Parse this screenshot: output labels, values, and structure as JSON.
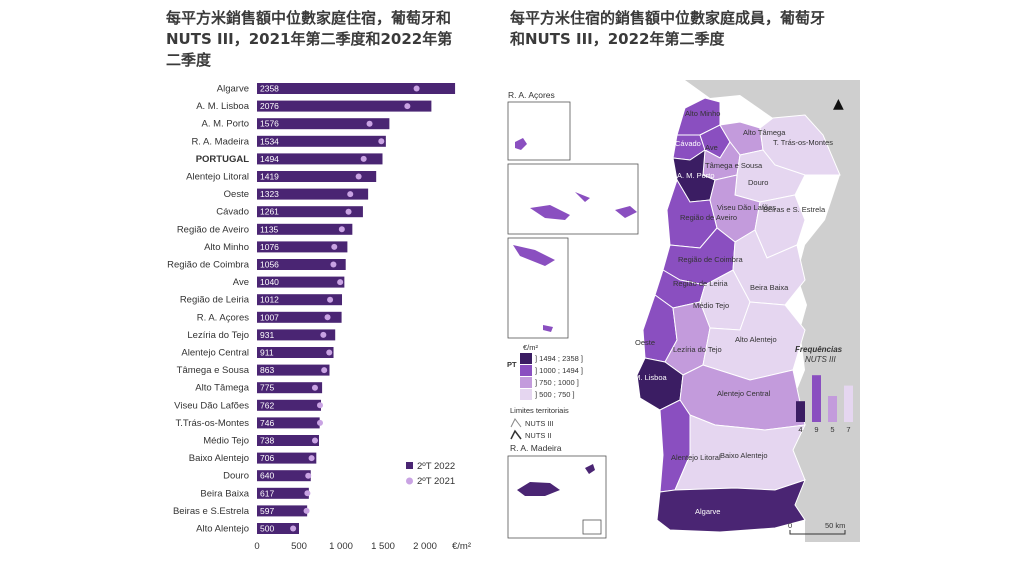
{
  "left_title": "每平方米銷售額中位數家庭住宿，葡萄牙和NUTS III，2021年第二季度和2022年第二季度",
  "right_title": "每平方米住宿的銷售額中位數家庭成員，葡萄牙和NUTS III，2022年第二季度",
  "colors": {
    "bar": "#4a2573",
    "dot": "#c9a3e3",
    "dark": "#3b1d63",
    "mid": "#8a4fc0",
    "light": "#c39bdc",
    "pale": "#e5d6f0",
    "sea": "#ffffff",
    "land_es": "#cfcfcf"
  },
  "chart_data": [
    {
      "type": "bar",
      "orientation": "horizontal",
      "categories": [
        "Algarve",
        "A. M. Lisboa",
        "A. M. Porto",
        "R. A. Madeira",
        "PORTUGAL",
        "Alentejo Litoral",
        "Oeste",
        "Cávado",
        "Região de Aveiro",
        "Alto Minho",
        "Região de Coimbra",
        "Ave",
        "Região de Leiria",
        "R. A. Açores",
        "Lezíria do Tejo",
        "Alentejo Central",
        "Tâmega e Sousa",
        "Alto Tâmega",
        "Viseu Dão Lafões",
        "T.Trás-os-Montes",
        "Médio Tejo",
        "Baixo Alentejo",
        "Douro",
        "Beira Baixa",
        "Beiras e S.Estrela",
        "Alto Alentejo"
      ],
      "series": [
        {
          "name": "2ºT 2022",
          "kind": "bar",
          "values": [
            2358,
            2076,
            1576,
            1534,
            1494,
            1419,
            1323,
            1261,
            1135,
            1076,
            1056,
            1040,
            1012,
            1007,
            931,
            911,
            863,
            775,
            762,
            746,
            738,
            706,
            640,
            617,
            597,
            500
          ]
        },
        {
          "name": "2ºT 2021",
          "kind": "dot",
          "values": [
            1900,
            1790,
            1340,
            1480,
            1270,
            1210,
            1110,
            1090,
            1010,
            920,
            910,
            990,
            870,
            840,
            790,
            860,
            800,
            690,
            750,
            750,
            690,
            650,
            610,
            600,
            590,
            430
          ]
        }
      ],
      "x_ticks": [
        "0",
        "500",
        "1 000",
        "1 500",
        "2 000"
      ],
      "x_unit": "€/m²",
      "xlim": [
        0,
        2500
      ],
      "legend_position": "bottom-right"
    }
  ],
  "map": {
    "inset_labels": {
      "azores": "R. A. Açores",
      "madeira": "R. A. Madeira"
    },
    "regions": [
      "Alto Minho",
      "Cávado",
      "Ave",
      "Alto Tâmega",
      "T. Trás-os-Montes",
      "Tâmega e Sousa",
      "A. M. Porto",
      "Douro",
      "Região de Aveiro",
      "Viseu Dão Lafões",
      "Beiras e S. Estrela",
      "Região de Coimbra",
      "Região de Leiria",
      "Beira Baixa",
      "Médio Tejo",
      "Oeste",
      "Lezíria do Tejo",
      "Alto Alentejo",
      "A. M. Lisboa",
      "Alentejo Central",
      "Alentejo Litoral",
      "Baixo Alentejo",
      "Algarve"
    ],
    "legend_unit": "€/m²",
    "legend_pt": "PT",
    "classes": [
      "] 1494 ; 2358 ]",
      "] 1000 ; 1494 ]",
      "] 750 ; 1000 ]",
      "] 500 ; 750 ]"
    ],
    "limits_title": "Limites territoriais",
    "limits": [
      "NUTS III",
      "NUTS II"
    ],
    "freq_title": "Frequências",
    "freq_subtitle": "NUTS III",
    "freq_values": [
      4,
      9,
      5,
      7
    ],
    "scale_labels": [
      "0",
      "50 km"
    ],
    "north": "▲"
  }
}
